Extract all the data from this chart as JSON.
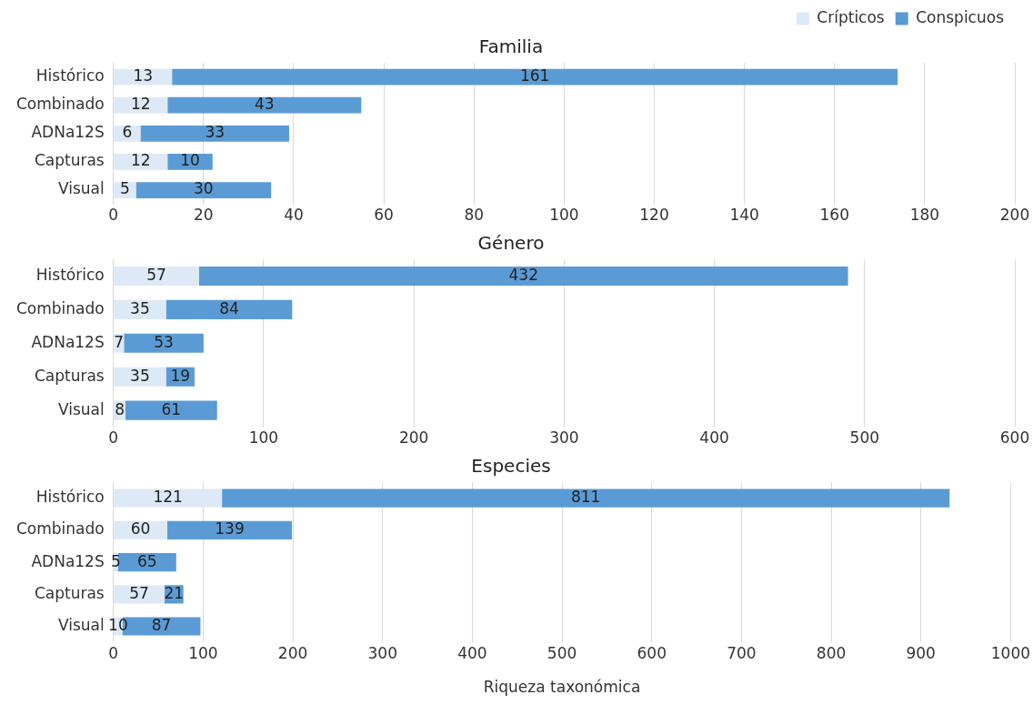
{
  "chart_data": [
    {
      "type": "bar",
      "title": "Familia",
      "orientation": "horizontal",
      "stacked": true,
      "categories": [
        "Histórico",
        "Combinado",
        "ADNa12S",
        "Capturas",
        "Visual"
      ],
      "series": [
        {
          "name": "Crípticos",
          "color": "#dde9f6",
          "values": [
            13,
            12,
            6,
            12,
            5
          ]
        },
        {
          "name": "Conspicuos",
          "color": "#5b9bd5",
          "values": [
            161,
            43,
            33,
            10,
            30
          ]
        }
      ],
      "xlim": [
        0,
        200
      ],
      "xticks": [
        0,
        20,
        40,
        60,
        80,
        100,
        120,
        140,
        160,
        180,
        200
      ],
      "grid": "x",
      "legend": "top right",
      "data_labels": true
    },
    {
      "type": "bar",
      "title": "Género",
      "orientation": "horizontal",
      "stacked": true,
      "categories": [
        "Histórico",
        "Combinado",
        "ADNa12S",
        "Capturas",
        "Visual"
      ],
      "series": [
        {
          "color": "#dde9f6",
          "values": [
            57,
            35,
            7,
            35,
            8
          ]
        },
        {
          "color": "#5b9bd5",
          "values": [
            432,
            84,
            53,
            19,
            61
          ]
        }
      ],
      "xlim": [
        0,
        600
      ],
      "xticks": [
        0,
        100,
        200,
        300,
        400,
        500,
        600
      ],
      "grid": "x",
      "data_labels": true
    },
    {
      "type": "bar",
      "title": "Especies",
      "xlabel": "Riqueza taxonómica",
      "orientation": "horizontal",
      "stacked": true,
      "categories": [
        "Histórico",
        "Combinado",
        "ADNa12S",
        "Capturas",
        "Visual"
      ],
      "series": [
        {
          "color": "#dde9f6",
          "values": [
            121,
            60,
            5,
            57,
            10
          ]
        },
        {
          "color": "#5b9bd5",
          "values": [
            811,
            139,
            65,
            21,
            87
          ]
        }
      ],
      "xlim": [
        0,
        1000
      ],
      "xticks": [
        0,
        100,
        200,
        300,
        400,
        500,
        600,
        700,
        800,
        900,
        1000
      ],
      "grid": "x",
      "data_labels": true
    }
  ]
}
